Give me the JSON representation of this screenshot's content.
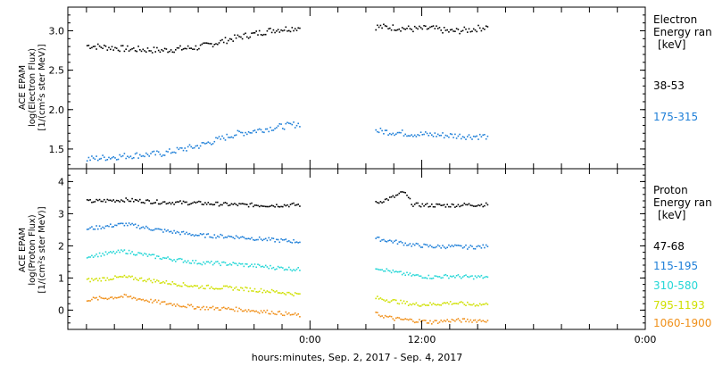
{
  "chart_data": [
    {
      "type": "scatter",
      "panel": "electron",
      "ylabel_lines": [
        "ACE EPAM",
        "log(Electron Flux)",
        "[1/(cm²s ster MeV)]"
      ],
      "ylim": [
        1.25,
        3.3
      ],
      "yticks": [
        1.5,
        2.0,
        2.5,
        3.0
      ],
      "ytick_labels": [
        "1.5",
        "2.0",
        "2.5",
        "3.0"
      ],
      "legend_title": [
        "Electron",
        "Energy ran"
      ],
      "legend_unit": "[keV]",
      "series": [
        {
          "name": "38-53",
          "color": "#000000",
          "x": [
            -24,
            -20,
            -16,
            -12,
            -8,
            -4,
            -1,
            7,
            9,
            11,
            13,
            15,
            17,
            19
          ],
          "y": [
            2.82,
            2.78,
            2.76,
            2.8,
            2.92,
            3.02,
            3.05,
            3.06,
            3.05,
            3.03,
            3.04,
            3.0,
            3.02,
            3.06
          ]
        },
        {
          "name": "175-315",
          "color": "#1e7fd8",
          "x": [
            -24,
            -20,
            -16,
            -12,
            -8,
            -4,
            -1,
            7,
            9,
            11,
            13,
            15,
            17,
            19
          ],
          "y": [
            1.38,
            1.42,
            1.45,
            1.55,
            1.7,
            1.78,
            1.83,
            1.74,
            1.72,
            1.7,
            1.69,
            1.68,
            1.67,
            1.67
          ]
        }
      ]
    },
    {
      "type": "scatter",
      "panel": "proton",
      "ylabel_lines": [
        "ACE EPAM",
        "log(Proton Flux)",
        "[1/(cm²s ster MeV)]"
      ],
      "ylim": [
        -0.6,
        4.4
      ],
      "yticks": [
        0,
        1,
        2,
        3,
        4
      ],
      "ytick_labels": [
        "0",
        "1",
        "2",
        "3",
        "4"
      ],
      "legend_title": [
        "Proton",
        "Energy ran"
      ],
      "legend_unit": "[keV]",
      "series": [
        {
          "name": "47-68",
          "color": "#000000",
          "x": [
            -24,
            -20,
            -16,
            -12,
            -8,
            -4,
            -1,
            7,
            9,
            10,
            11,
            13,
            15,
            17,
            19
          ],
          "y": [
            3.4,
            3.45,
            3.38,
            3.35,
            3.3,
            3.28,
            3.3,
            3.35,
            3.55,
            3.7,
            3.3,
            3.28,
            3.28,
            3.3,
            3.3
          ]
        },
        {
          "name": "115-195",
          "color": "#1e7fd8",
          "x": [
            -24,
            -20,
            -16,
            -12,
            -8,
            -4,
            -1,
            7,
            9,
            11,
            13,
            15,
            17,
            19
          ],
          "y": [
            2.55,
            2.7,
            2.5,
            2.35,
            2.3,
            2.2,
            2.15,
            2.25,
            2.15,
            2.05,
            2.0,
            2.0,
            1.98,
            2.0
          ]
        },
        {
          "name": "310-580",
          "color": "#22d6d6",
          "x": [
            -24,
            -20,
            -16,
            -12,
            -8,
            -4,
            -1,
            7,
            9,
            11,
            13,
            15,
            17,
            19
          ],
          "y": [
            1.7,
            1.85,
            1.65,
            1.5,
            1.45,
            1.35,
            1.28,
            1.35,
            1.2,
            1.1,
            1.05,
            1.08,
            1.05,
            1.05
          ]
        },
        {
          "name": "795-1193",
          "color": "#cfe000",
          "x": [
            -24,
            -20,
            -16,
            -12,
            -8,
            -4,
            -1,
            7,
            9,
            11,
            13,
            15,
            17,
            19
          ],
          "y": [
            0.95,
            1.05,
            0.9,
            0.75,
            0.7,
            0.6,
            0.5,
            0.4,
            0.3,
            0.2,
            0.2,
            0.25,
            0.2,
            0.2
          ]
        },
        {
          "name": "1060-1900",
          "color": "#f0901a",
          "x": [
            -24,
            -20,
            -16,
            -12,
            -8,
            -4,
            -1,
            7,
            9,
            11,
            13,
            15,
            17,
            19
          ],
          "y": [
            0.35,
            0.45,
            0.25,
            0.1,
            0.05,
            -0.05,
            -0.15,
            -0.1,
            -0.25,
            -0.3,
            -0.35,
            -0.3,
            -0.3,
            -0.3
          ]
        }
      ]
    }
  ],
  "x_axis": {
    "range_hours": [
      -26,
      36
    ],
    "major_ticks": [
      0,
      12,
      36
    ],
    "major_tick_labels": [
      "0:00",
      "12:00",
      "0:00"
    ],
    "minor_step_hours": 3,
    "xlabel": "hours:minutes, Sep.  2, 2017 - Sep.  4, 2017"
  }
}
